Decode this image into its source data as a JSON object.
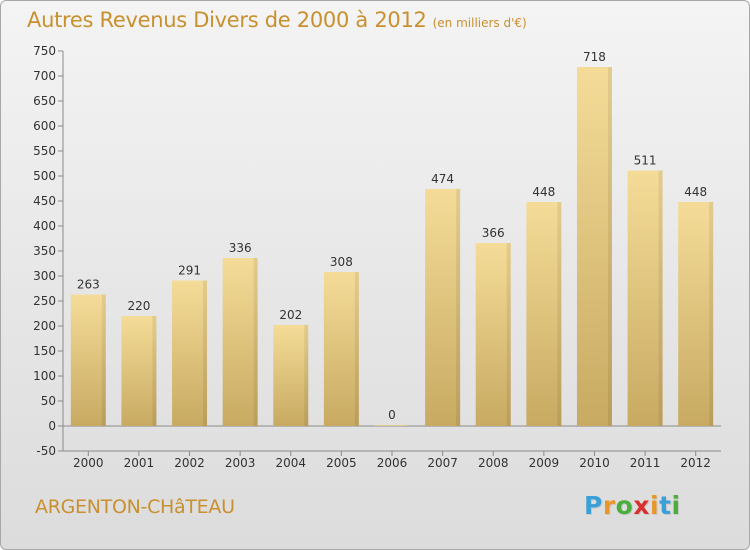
{
  "header": {
    "title": "Autres Revenus Divers de 2000 à 2012",
    "subtitle": "(en milliers d'€)"
  },
  "footer": {
    "town": "ARGENTON-CHâTEAU",
    "logo_letters": [
      "P",
      "r",
      "o",
      "x",
      "i",
      "t",
      "i"
    ],
    "logo_colors": [
      "#3aa0d8",
      "#e8962a",
      "#4aae3c",
      "#d8302f",
      "#e8962a",
      "#3aa0d8",
      "#4aae3c"
    ]
  },
  "colors": {
    "bar_top": "#f4dc98",
    "bar_bottom": "#c8aa62",
    "text": "#333333",
    "title": "#c8902f"
  },
  "chart_data": {
    "type": "bar",
    "categories": [
      "2000",
      "2001",
      "2002",
      "2003",
      "2004",
      "2005",
      "2006",
      "2007",
      "2008",
      "2009",
      "2010",
      "2011",
      "2012"
    ],
    "values": [
      263,
      220,
      291,
      336,
      202,
      308,
      0,
      474,
      366,
      448,
      718,
      511,
      448
    ],
    "ylim": [
      -50,
      750
    ],
    "yticks": [
      -50,
      0,
      50,
      100,
      150,
      200,
      250,
      300,
      350,
      400,
      450,
      500,
      550,
      600,
      650,
      700,
      750
    ],
    "grid": false,
    "legend": "none"
  }
}
